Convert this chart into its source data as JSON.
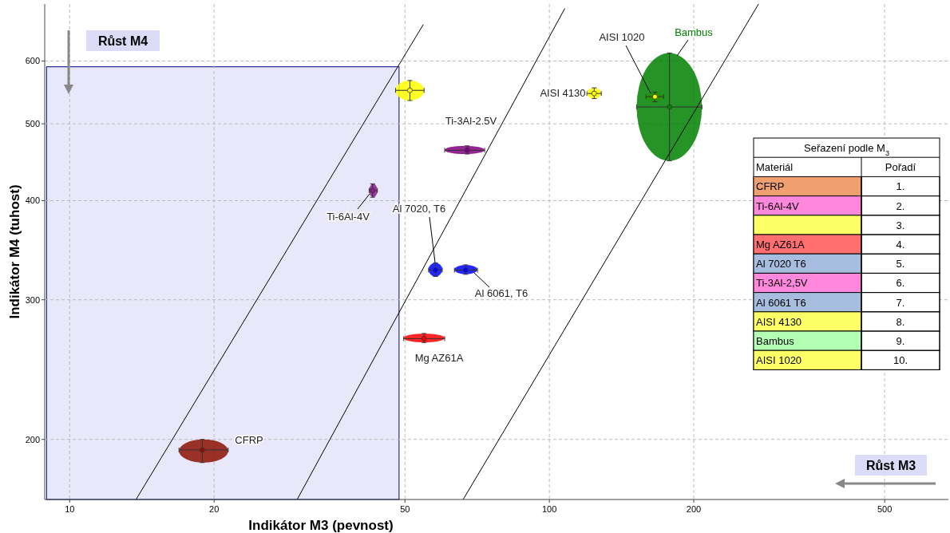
{
  "chart_data": {
    "type": "scatter",
    "xlabel": "Indikátor M3 (pevnost)",
    "ylabel": "Indikátor M4 (tuhost)",
    "log": "xy",
    "xlim": [
      8.87,
      679
    ],
    "ylim": [
      168,
      708
    ],
    "xticks": [
      10,
      20,
      50,
      100,
      200,
      500
    ],
    "yticks": [
      200,
      300,
      400,
      500,
      600
    ],
    "grid": true,
    "marker": "circle",
    "bands": [
      {
        "axis": "x",
        "from": 8.95,
        "to": 48.6,
        "color": "#e8e8fa"
      }
    ],
    "series": [
      {
        "name": "CFRP",
        "color": "#8b1000",
        "x": [
          18.9
        ],
        "values": [
          194
        ],
        "xerrors": [
          [
            16.9,
            21.4
          ]
        ],
        "errors": [
          [
            187,
            200
          ]
        ]
      },
      {
        "name": "Ti-6Al-4V",
        "color": "#8b1a8b",
        "x": [
          42.8
        ],
        "values": [
          412
        ],
        "xerrors": [
          [
            42.1,
            43.8
          ]
        ],
        "errors": [
          [
            404,
            420
          ]
        ]
      },
      {
        "color": "#ffff00",
        "x": [
          51.2
        ],
        "values": [
          551
        ],
        "xerrors": [
          [
            47.8,
            54.8
          ]
        ],
        "errors": [
          [
            535,
            567
          ]
        ]
      },
      {
        "name": "Ti-3Al-2.5V",
        "color": "#800080",
        "x": [
          67.4
        ],
        "values": [
          463
        ],
        "xerrors": [
          [
            60.5,
            73.3
          ]
        ],
        "errors": [
          [
            458,
            469
          ]
        ]
      },
      {
        "name": "Al 7020, T6",
        "color": "#0000ff",
        "x": [
          57.9
        ],
        "values": [
          327
        ],
        "xerrors": [
          [
            56.0,
            59.8
          ]
        ],
        "errors": [
          [
            321,
            334
          ]
        ]
      },
      {
        "name": "Al 6061, T6",
        "color": "#0000ff",
        "x": [
          66.9
        ],
        "values": [
          327
        ],
        "xerrors": [
          [
            63.4,
            70.8
          ]
        ],
        "errors": [
          [
            323,
            332
          ]
        ]
      },
      {
        "name": "Mg AZ61A",
        "color": "#ff0000",
        "x": [
          54.8
        ],
        "values": [
          268
        ],
        "xerrors": [
          [
            49.7,
            60.5
          ]
        ],
        "errors": [
          [
            265,
            272
          ]
        ]
      },
      {
        "name": "AISI 4130",
        "color": "#ffff00",
        "x": [
          124
        ],
        "values": [
          546
        ],
        "xerrors": [
          [
            119.7,
            128.3
          ]
        ],
        "errors": [
          [
            538,
            555
          ]
        ]
      },
      {
        "name": "AISI 1020",
        "color": "#ffff00",
        "x": [
          166
        ],
        "values": [
          541
        ],
        "xerrors": [
          [
            159,
            173
          ]
        ],
        "errors": [
          [
            533,
            548
          ]
        ]
      },
      {
        "name": "Bambus",
        "color": "#008000",
        "x": [
          178
        ],
        "values": [
          525
        ],
        "xerrors": [
          [
            152,
            208
          ]
        ],
        "errors": [
          [
            449,
            614
          ]
        ]
      },
      {
        "type": "line",
        "color": "#000000",
        "marker": "none",
        "x": [
          13.75,
          54.6
        ],
        "values": [
          168,
          667
        ]
      },
      {
        "type": "line",
        "color": "#000000",
        "marker": "none",
        "x": [
          29.8,
          107.7
        ],
        "values": [
          168,
          699
        ]
      },
      {
        "type": "line",
        "color": "#000000",
        "marker": "none",
        "x": [
          66.1,
          273
        ],
        "values": [
          168,
          708
        ]
      }
    ],
    "annotations": [
      "Růst M4",
      "Růst M3",
      "Seřazení podle M$_{3}$",
      "Materiál",
      "Pořadí",
      "CFRP",
      "1.",
      "Ti-6Al-4V",
      "2.",
      null,
      "3.",
      "Mg AZ61A",
      "4.",
      "Al 7020 T6",
      "5.",
      "Ti-3Al-2,5V",
      "6.",
      "Al 6061 T6",
      "7.",
      "AISI 4130",
      "8.",
      "Bambus",
      "9.",
      "AISI 1020",
      "10."
    ]
  }
}
